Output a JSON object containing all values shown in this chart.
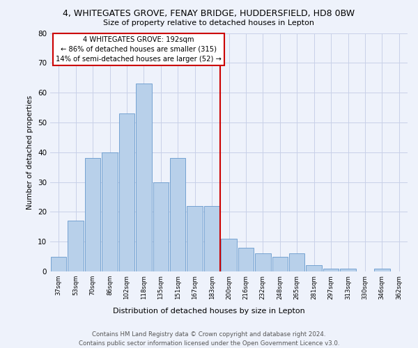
{
  "title_line1": "4, WHITEGATES GROVE, FENAY BRIDGE, HUDDERSFIELD, HD8 0BW",
  "title_line2": "Size of property relative to detached houses in Lepton",
  "xlabel": "Distribution of detached houses by size in Lepton",
  "ylabel": "Number of detached properties",
  "bin_labels": [
    "37sqm",
    "53sqm",
    "70sqm",
    "86sqm",
    "102sqm",
    "118sqm",
    "135sqm",
    "151sqm",
    "167sqm",
    "183sqm",
    "200sqm",
    "216sqm",
    "232sqm",
    "248sqm",
    "265sqm",
    "281sqm",
    "297sqm",
    "313sqm",
    "330sqm",
    "346sqm",
    "362sqm"
  ],
  "bar_heights": [
    5,
    17,
    38,
    40,
    53,
    63,
    30,
    38,
    22,
    22,
    11,
    8,
    6,
    5,
    6,
    2,
    1,
    1,
    0,
    1,
    0
  ],
  "bar_color": "#b8d0ea",
  "bar_edge_color": "#6699cc",
  "vline_color": "#cc0000",
  "annotation_text": "4 WHITEGATES GROVE: 192sqm\n← 86% of detached houses are smaller (315)\n14% of semi-detached houses are larger (52) →",
  "vline_x": 9.5,
  "ylim": [
    0,
    80
  ],
  "yticks": [
    0,
    10,
    20,
    30,
    40,
    50,
    60,
    70,
    80
  ],
  "footer_line1": "Contains HM Land Registry data © Crown copyright and database right 2024.",
  "footer_line2": "Contains public sector information licensed under the Open Government Licence v3.0.",
  "background_color": "#eef2fb",
  "grid_color": "#c8d0e8"
}
